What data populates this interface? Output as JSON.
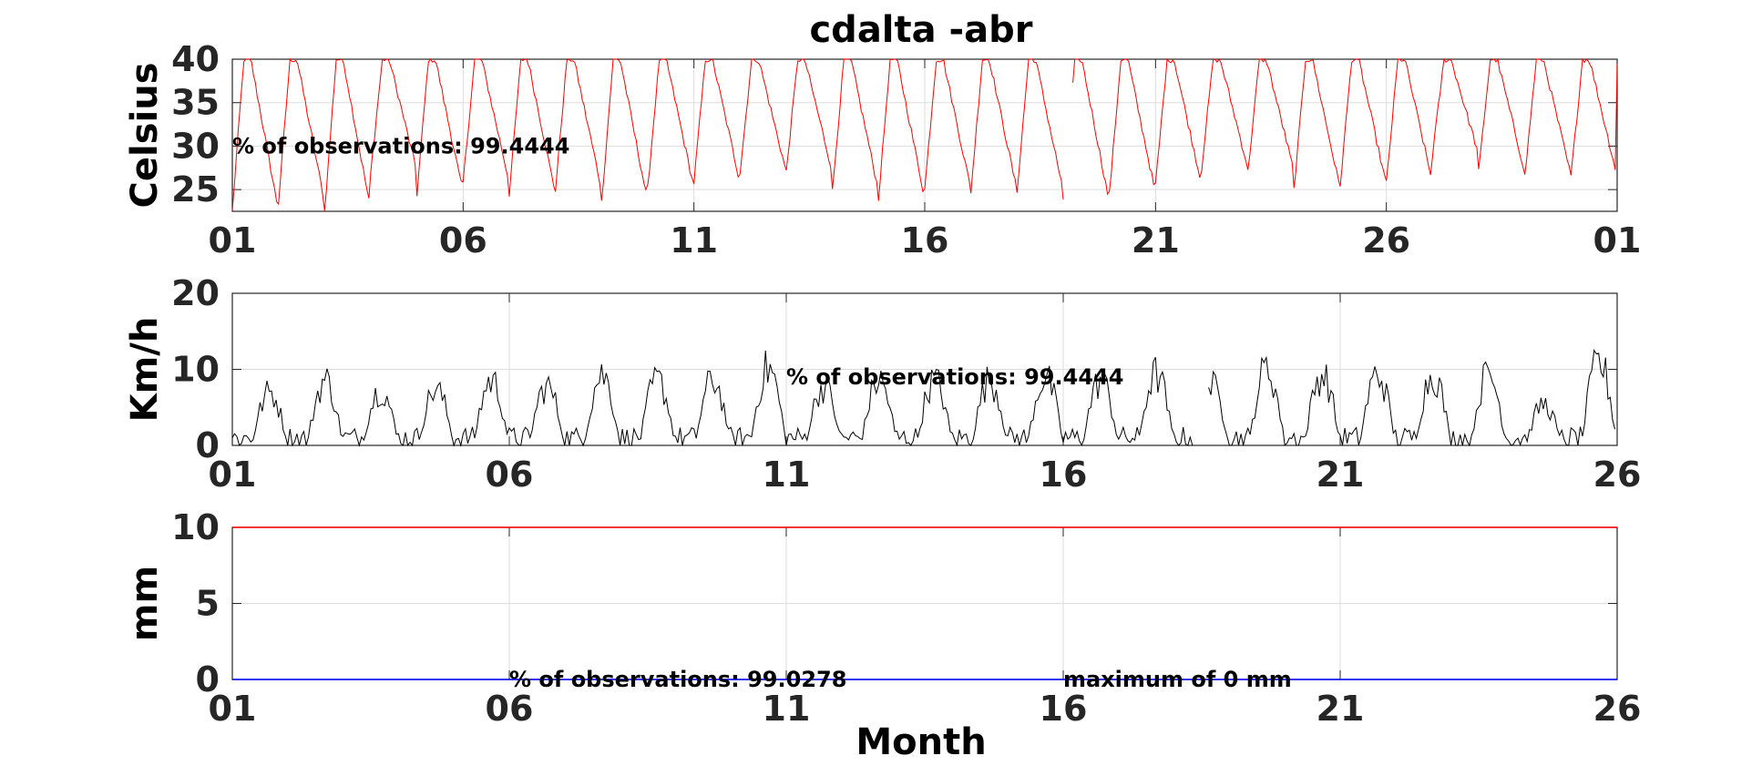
{
  "title": "cdalta -abr",
  "xlabel": "Month",
  "colors": {
    "temperature": "#ff0000",
    "wind": "#000000",
    "rain_max": "#ff0000",
    "rain": "#0000ff",
    "grid": "#dddddd",
    "axes": "#262626"
  },
  "chart_data": [
    {
      "type": "line",
      "ylabel": "Celsius",
      "ylim": [
        22.5,
        40
      ],
      "yticks": [
        "25",
        "30",
        "35",
        "40"
      ],
      "xticks": [
        "01",
        "06",
        "11",
        "16",
        "21",
        "26",
        "01"
      ],
      "xlim": [
        0,
        30
      ],
      "grid": true,
      "annotation": "% of observations: 99.4444",
      "series": [
        {
          "color": "#ff0000",
          "gap_days": [
            18.0,
            18.2
          ],
          "daily_min": [
            22.5,
            23.5,
            22.5,
            27.0,
            24.5,
            25.8,
            24.5,
            25.0,
            23.5,
            25.2,
            25.8,
            27.0,
            27.0,
            24.8,
            24.0,
            25.0,
            24.8,
            24.8,
            23.5,
            24.5,
            25.5,
            27.5,
            27.0,
            25.0,
            25.5,
            25.7,
            29.0,
            27.0,
            26.5,
            26.5
          ],
          "daily_max": [
            40,
            40,
            40,
            40,
            40,
            40,
            40,
            40,
            40,
            40,
            40,
            40,
            40,
            40,
            40,
            40,
            40,
            40,
            40,
            40,
            40,
            40,
            40,
            40,
            40,
            40,
            40,
            40,
            40,
            40
          ]
        }
      ]
    },
    {
      "type": "line",
      "ylabel": "Km/h",
      "ylim": [
        0,
        20
      ],
      "yticks": [
        "0",
        "10",
        "20"
      ],
      "xticks": [
        "01",
        "06",
        "11",
        "16",
        "21",
        "26"
      ],
      "xlim": [
        0,
        25
      ],
      "grid": true,
      "annotation": "% of observations: 99.4444",
      "series": [
        {
          "color": "#000000",
          "gap_days": [
            17.35,
            17.6
          ],
          "daily_peak": [
            9.0,
            11.0,
            9.5,
            9.5,
            11.0,
            10.0,
            12.0,
            11.0,
            11.0,
            13.0,
            10.0,
            11.0,
            11.0,
            11.0,
            11.5,
            11.0,
            12.0,
            10.0,
            13.0,
            12.0,
            12.0,
            12.0,
            12.0,
            7.0,
            14.0
          ]
        }
      ]
    },
    {
      "type": "line",
      "ylabel": "mm",
      "ylim": [
        0,
        10
      ],
      "yticks": [
        "0",
        "5",
        "10"
      ],
      "xticks": [
        "01",
        "06",
        "11",
        "16",
        "21",
        "26"
      ],
      "xlim": [
        0,
        25
      ],
      "grid": true,
      "annotation": "% of observations: 99.0278",
      "annotation2": "maximum of 0 mm",
      "series": [
        {
          "color": "#ff0000",
          "values": [
            [
              0,
              10
            ],
            [
              25,
              10
            ]
          ]
        },
        {
          "color": "#0000ff",
          "values": [
            [
              0,
              0
            ],
            [
              25,
              0
            ]
          ]
        }
      ]
    }
  ]
}
